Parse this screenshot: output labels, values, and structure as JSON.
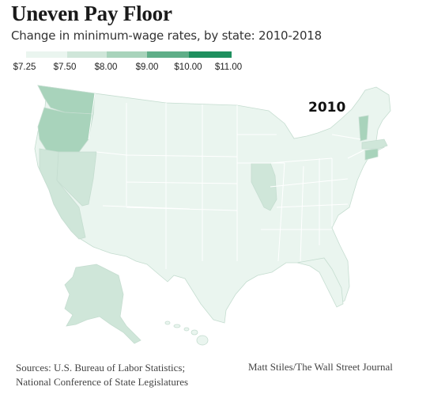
{
  "title": "Uneven Pay Floor",
  "subtitle": "Change in minimum-wage rates, by state: 2010-2018",
  "legend": {
    "colors": [
      "#eaf5ef",
      "#cfe6d9",
      "#a8d3bb",
      "#5fae88",
      "#1e8f5e"
    ],
    "labels": [
      "$7.25",
      "$7.50",
      "$8.00",
      "$9.00",
      "$10.00",
      "$11.00"
    ]
  },
  "year_label": "2010",
  "map_colors": {
    "base": "#eaf5ef",
    "light": "#cfe6d9",
    "mid": "#a8d3bb",
    "border": "#ffffff",
    "outline": "#c5ddd0"
  },
  "highlighted_states": {
    "Washington": "mid",
    "Oregon": "mid",
    "Vermont": "mid",
    "Connecticut": "mid",
    "Illinois": "light",
    "Nevada": "light",
    "California": "light",
    "Alaska": "light",
    "Massachusetts": "light"
  },
  "source": [
    "Sources: U.S. Bureau of Labor Statistics;",
    "National Conference of State Legislatures"
  ],
  "credit": "Matt Stiles/The Wall Street Journal"
}
